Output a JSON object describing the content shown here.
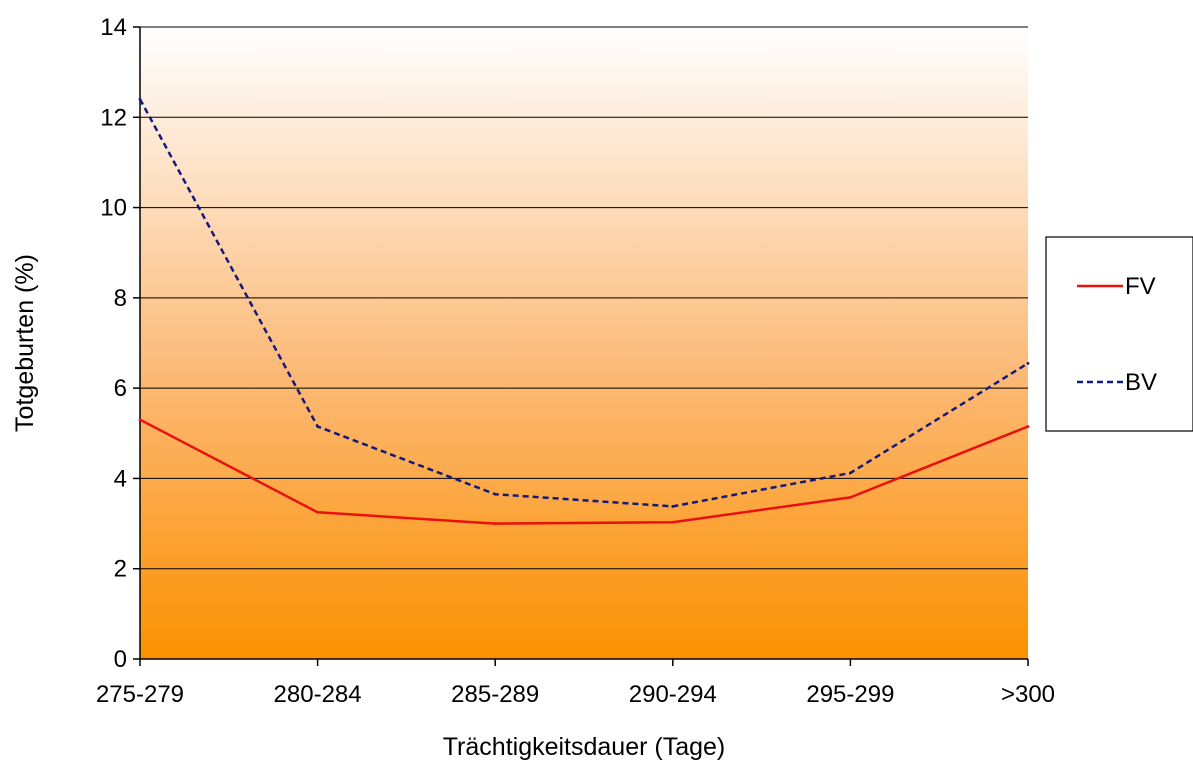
{
  "chart_data": {
    "type": "line",
    "title": "",
    "xlabel": "Trächtigkeitsdauer (Tage)",
    "ylabel": "Totgeburten (%)",
    "categories": [
      "275-279",
      "280-284",
      "285-289",
      "290-294",
      "295-299",
      ">300"
    ],
    "ylim": [
      0,
      14
    ],
    "yticks": [
      0,
      2,
      4,
      6,
      8,
      10,
      12,
      14
    ],
    "grid": "horizontal",
    "legend_position": "right",
    "background": "gradient-orange-to-white",
    "series": [
      {
        "name": "FV",
        "values": [
          5.3,
          3.25,
          3.0,
          3.03,
          3.58,
          5.15
        ],
        "color": "#e8110f",
        "style": "solid"
      },
      {
        "name": "BV",
        "values": [
          12.4,
          5.15,
          3.65,
          3.38,
          4.12,
          6.55
        ],
        "color": "#141a7c",
        "style": "dashed"
      }
    ]
  }
}
